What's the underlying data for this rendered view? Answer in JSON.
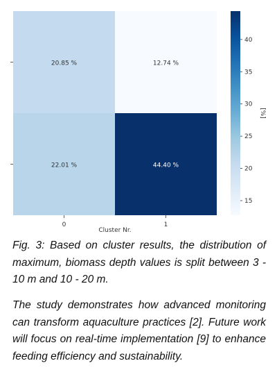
{
  "chart_data": {
    "type": "heatmap",
    "xlabel": "Cluster Nr.",
    "ylabel": "",
    "x_categories": [
      "0",
      "1"
    ],
    "y_categories": [
      "",
      ""
    ],
    "values": [
      [
        20.85,
        12.74
      ],
      [
        22.01,
        44.4
      ]
    ],
    "cell_labels": [
      [
        "20.85 %",
        "12.74 %"
      ],
      [
        "22.01 %",
        "44.40 %"
      ]
    ],
    "colorbar": {
      "label": "[%]",
      "ticks": [
        15,
        20,
        25,
        30,
        35,
        40
      ],
      "range": [
        12.74,
        44.4
      ],
      "colormap": "Blues"
    }
  },
  "caption": "Fig. 3: Based on cluster results, the distribution of maximum, biomass depth values is split between 3 - 10 m and 10 - 20 m.",
  "body_text": "The study demonstrates how advanced monitoring can transform aquaculture practices [2]. Future work will focus on real-time implementation [9] to enhance feeding efficiency and sustainability."
}
